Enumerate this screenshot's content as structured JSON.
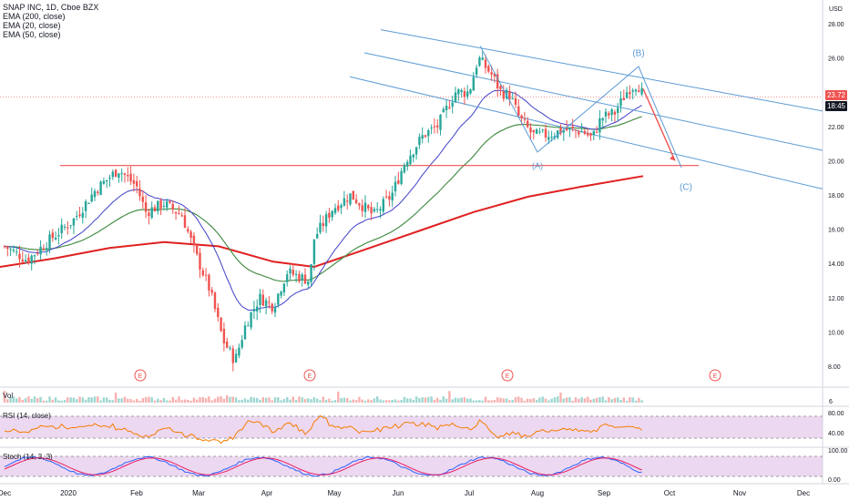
{
  "header": {
    "symbol_line": "SNAP INC, 1D, Cboe BZX",
    "indicators": [
      "EMA (200, close)",
      "EMA (20, close)",
      "EMA (50, close)"
    ]
  },
  "price_axis": {
    "currency": "USD",
    "last_price": "23.72",
    "countdown": "18:45",
    "colors": {
      "last_price_bg": "#ef5350",
      "countdown_bg": "#131722"
    }
  },
  "panels": {
    "volume_label": "Vol",
    "rsi_label": "RSI (14, close)",
    "stoch_label": "Stoch (14, 3, 3)"
  },
  "chart_data": {
    "type": "candlestick",
    "price_ticks": [
      "28.00",
      "26.00",
      "24.00",
      "22.00",
      "20.00",
      "18.00",
      "16.00",
      "14.00",
      "12.00",
      "10.00",
      "8.00"
    ],
    "price_values": [
      28,
      26,
      24,
      22,
      20,
      18,
      16,
      14,
      12,
      10,
      8
    ],
    "volume_ticks": [
      "6"
    ],
    "rsi_ticks": [
      "80.00",
      "40.00"
    ],
    "stoch_ticks": [
      "100.00",
      "0.00"
    ],
    "time_labels": [
      "Dec",
      "2020",
      "Feb",
      "Mar",
      "Apr",
      "May",
      "Jun",
      "Jul",
      "Aug",
      "Sep",
      "Oct",
      "Nov",
      "Dec"
    ],
    "earnings_markers": [
      "E",
      "E",
      "E",
      "E"
    ],
    "wave_labels": [
      "(A)",
      "(B)",
      "(C)"
    ],
    "colors": {
      "up": "#26a69a",
      "down": "#ef5350",
      "ema200": "#e02020",
      "ema20": "#4040c8",
      "ema50": "#4a8f4a",
      "channel": "#5b9bd5",
      "resistance": "#ef5350",
      "rsi": "#f57c00",
      "stoch_k": "#2962ff",
      "stoch_d": "#e91e63",
      "rsi_band": "#e1bee7",
      "stoch_band": "#e1bee7"
    }
  }
}
